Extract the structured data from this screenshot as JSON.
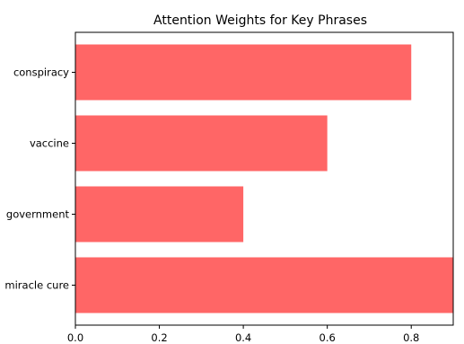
{
  "chart_data": {
    "type": "bar",
    "orientation": "horizontal",
    "title": "Attention Weights for Key Phrases",
    "xlabel": "",
    "ylabel": "",
    "categories": [
      "miracle cure",
      "government",
      "vaccine",
      "conspiracy"
    ],
    "values": [
      0.9,
      0.4,
      0.6,
      0.8
    ],
    "xlim": [
      0,
      0.9
    ],
    "xticks": [
      "0.0",
      "0.2",
      "0.4",
      "0.6",
      "0.8"
    ],
    "grid": false,
    "legend": "none",
    "bar_color": "#ff6666"
  }
}
